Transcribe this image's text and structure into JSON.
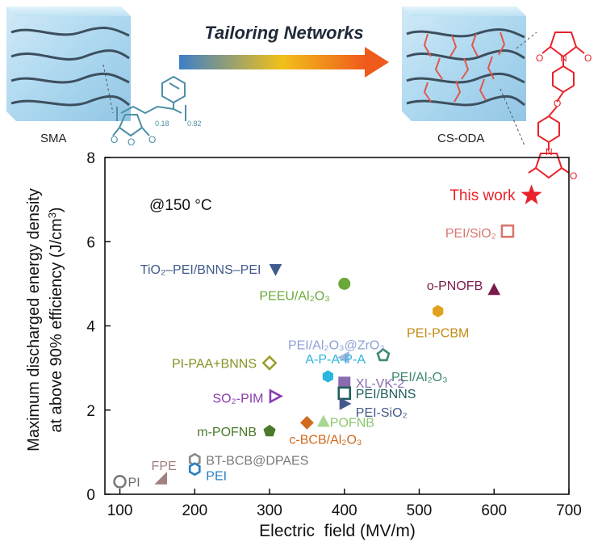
{
  "header": {
    "left_label": "SMA",
    "right_label": "CS-ODA",
    "arrow_text": "Tailoring Networks",
    "left_sub_a": "0.18",
    "left_sub_b": "0.82",
    "left_struct_o": [
      "O",
      "O",
      "O"
    ],
    "right_struct_o": [
      "O",
      "N",
      "O",
      "O",
      "N",
      "O"
    ]
  },
  "chart_data": {
    "type": "scatter",
    "title": "",
    "annotation": "@150 °C",
    "xlabel": "Electric  field (MV/m)",
    "ylabel_line1": "Maximum discharged energy density",
    "ylabel_line2_prefix": "at above 90% efficiency (J/cm",
    "ylabel_line2_sup": "3",
    "ylabel_line2_suffix": ")",
    "xlim": [
      80,
      700
    ],
    "ylim": [
      0,
      8
    ],
    "xticks": [
      100,
      200,
      300,
      400,
      500,
      600,
      700
    ],
    "yticks": [
      0,
      2,
      4,
      6,
      8
    ],
    "grid": false,
    "points": [
      {
        "label": "This work",
        "x": 650,
        "y": 7.1,
        "marker": "star",
        "filled": true,
        "color": "#e8232a"
      },
      {
        "label": "PEI/SiO₂",
        "x": 618,
        "y": 6.25,
        "marker": "square",
        "filled": false,
        "color": "#d87670"
      },
      {
        "label": "o-PNOFB",
        "x": 600,
        "y": 4.85,
        "marker": "triangle-up",
        "filled": true,
        "color": "#7b1a4a"
      },
      {
        "label": "PEI-PCBM",
        "x": 525,
        "y": 4.35,
        "marker": "hexagon",
        "filled": true,
        "color": "#e0a21c"
      },
      {
        "label": "TiO₂–PEI/BNNS–PEI",
        "x": 308,
        "y": 5.35,
        "marker": "triangle-down",
        "filled": true,
        "color": "#3f5a8c"
      },
      {
        "label": "PEEU/Al₂O₃",
        "x": 400,
        "y": 5.0,
        "marker": "circle",
        "filled": true,
        "color": "#6aa838"
      },
      {
        "label": "PEI/Al₂O₃@ZrO₂",
        "x": 400,
        "y": 3.25,
        "marker": "triangle-left",
        "filled": true,
        "color": "#a7b7e0"
      },
      {
        "label": "PEI/Al₂O₃",
        "x": 452,
        "y": 3.3,
        "marker": "pentagon",
        "filled": false,
        "color": "#3c8a6f"
      },
      {
        "label": "PI-PAA+BNNS",
        "x": 300,
        "y": 3.12,
        "marker": "diamond",
        "filled": false,
        "color": "#9aa02a"
      },
      {
        "label": "A-P-A-P-A",
        "x": 378,
        "y": 2.8,
        "marker": "hexagon",
        "filled": true,
        "color": "#29b6df"
      },
      {
        "label": "XL-VK-2",
        "x": 400,
        "y": 2.65,
        "marker": "square",
        "filled": true,
        "color": "#8b6bb0"
      },
      {
        "label": "PEI/BNNS",
        "x": 400,
        "y": 2.4,
        "marker": "square",
        "filled": false,
        "color": "#1f5e5a"
      },
      {
        "label": "PEI-SiO₂",
        "x": 400,
        "y": 2.15,
        "marker": "triangle-right",
        "filled": true,
        "color": "#45598a"
      },
      {
        "label": "SO₂-PIM",
        "x": 307,
        "y": 2.33,
        "marker": "triangle-right",
        "filled": false,
        "color": "#8a3fb0"
      },
      {
        "label": "m-POFNB",
        "x": 300,
        "y": 1.5,
        "marker": "pentagon",
        "filled": true,
        "color": "#4a7a2a"
      },
      {
        "label": "POFNB",
        "x": 372,
        "y": 1.72,
        "marker": "triangle-up",
        "filled": true,
        "color": "#a8d890"
      },
      {
        "label": "c-BCB/Al₂O₃",
        "x": 350,
        "y": 1.7,
        "marker": "diamond",
        "filled": true,
        "color": "#d06a1c"
      },
      {
        "label": "BT-BCB@DPAES",
        "x": 200,
        "y": 0.82,
        "marker": "hexagon",
        "filled": false,
        "color": "#8a8a8a"
      },
      {
        "label": "PEI",
        "x": 200,
        "y": 0.6,
        "marker": "hexagon",
        "filled": false,
        "color": "#2a7fc0"
      },
      {
        "label": "FPE",
        "x": 155,
        "y": 0.38,
        "marker": "triangle-ll",
        "filled": true,
        "color": "#a08080"
      },
      {
        "label": "PI",
        "x": 100,
        "y": 0.3,
        "marker": "circle",
        "filled": false,
        "color": "#7a7a7a"
      }
    ]
  }
}
